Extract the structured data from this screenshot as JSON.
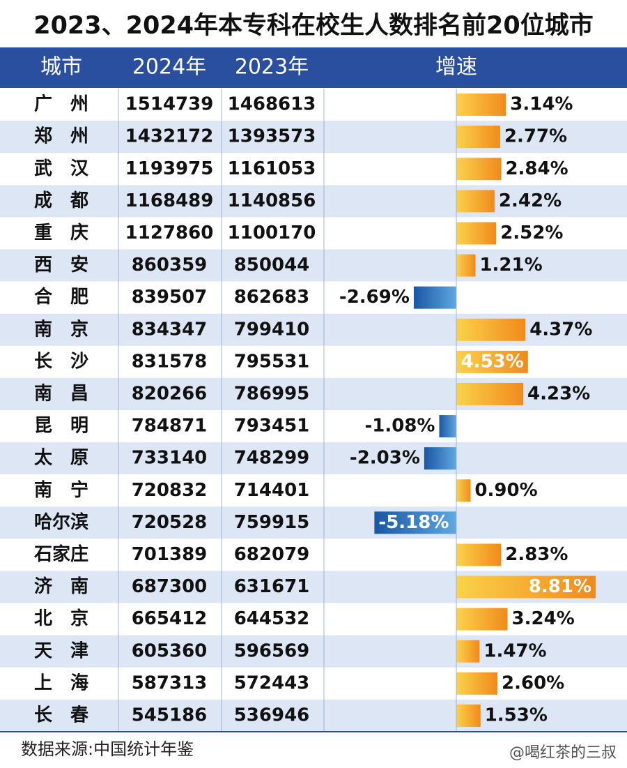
{
  "chart_data": {
    "type": "table_bar",
    "title": "2023、2024年本专科在校生人数排名前20位城市",
    "category_header": "城市",
    "categories": [
      "广　州",
      "郑　州",
      "武　汉",
      "成　都",
      "重　庆",
      "西　安",
      "合　肥",
      "南　京",
      "长　沙",
      "南　昌",
      "昆　明",
      "太　原",
      "南　宁",
      "哈尔滨",
      "石家庄",
      "济　南",
      "北　京",
      "天　津",
      "上　海",
      "长　春"
    ],
    "series": [
      {
        "name": "2024年",
        "values": [
          1514739,
          1432172,
          1193975,
          1168489,
          1127860,
          860359,
          839507,
          834347,
          831578,
          820266,
          784871,
          733140,
          720832,
          720528,
          701389,
          687300,
          665412,
          605360,
          587313,
          545186
        ]
      },
      {
        "name": "2023年",
        "values": [
          1468613,
          1393573,
          1161053,
          1140856,
          1100170,
          850044,
          862683,
          799410,
          795531,
          786995,
          793451,
          748299,
          714401,
          759915,
          682079,
          631671,
          644532,
          596569,
          572443,
          536946
        ]
      }
    ],
    "growth": {
      "name": "增速",
      "values": [
        3.14,
        2.77,
        2.84,
        2.42,
        2.52,
        1.21,
        -2.69,
        4.37,
        4.53,
        4.23,
        -1.08,
        -2.03,
        0.9,
        -5.18,
        2.83,
        8.81,
        3.24,
        1.47,
        2.6,
        1.53
      ],
      "value_labels": [
        "3.14%",
        "2.77%",
        "2.84%",
        "2.42%",
        "2.52%",
        "1.21%",
        "-2.69%",
        "4.37%",
        "4.53%",
        "4.23%",
        "-1.08%",
        "-2.03%",
        "0.90%",
        "-5.18%",
        "2.83%",
        "8.81%",
        "3.24%",
        "1.47%",
        "2.60%",
        "1.53%"
      ]
    },
    "source": "数据来源:中国统计年鉴",
    "watermark": "@喝红茶的三叔"
  }
}
